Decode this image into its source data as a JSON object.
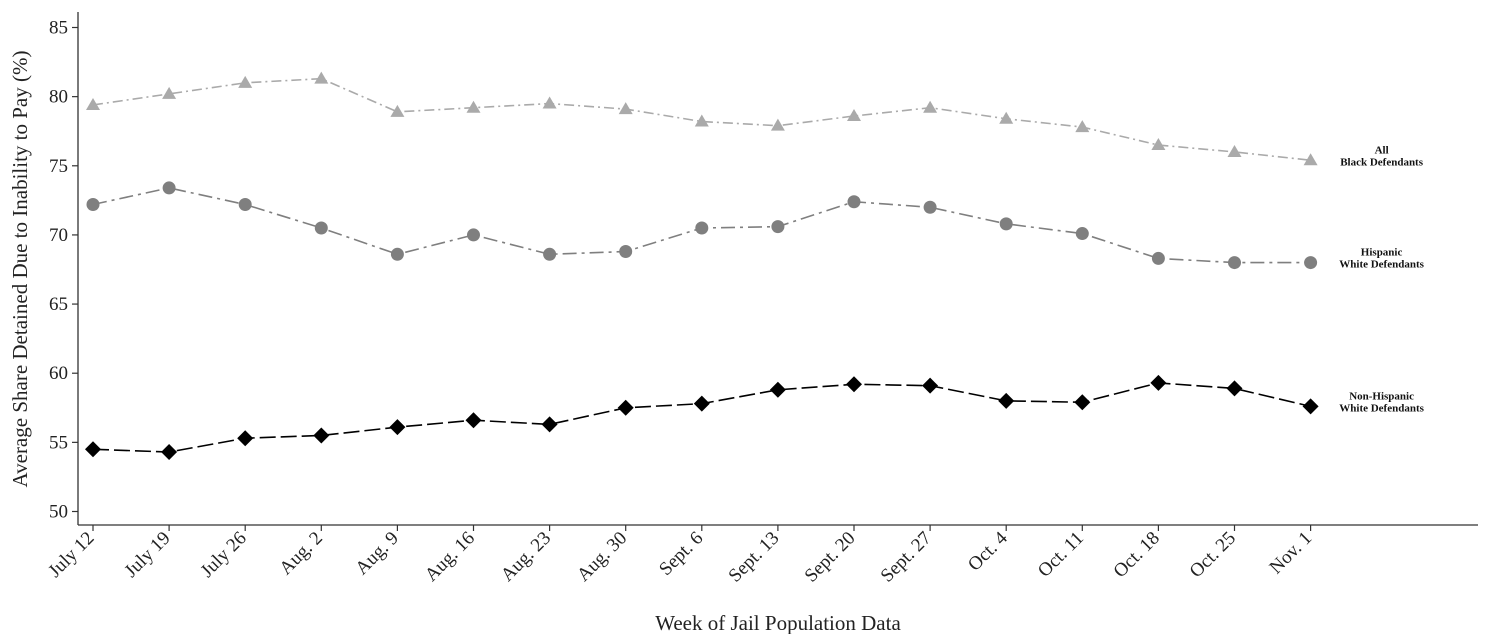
{
  "chart_data": {
    "type": "line",
    "title": "",
    "xlabel": "Week of Jail Population Data",
    "ylabel": "Average Share Detained Due to Inability to Pay (%)",
    "ylim": [
      50,
      85
    ],
    "yticks": [
      50,
      55,
      60,
      65,
      70,
      75,
      80,
      85
    ],
    "grid": false,
    "legend": "direct labels at right end of each line",
    "categories": [
      "July 12",
      "July 19",
      "July 26",
      "Aug. 2",
      "Aug. 9",
      "Aug. 16",
      "Aug. 23",
      "Aug. 30",
      "Sept. 6",
      "Sept. 13",
      "Sept. 20",
      "Sept. 27",
      "Oct. 4",
      "Oct. 11",
      "Oct. 18",
      "Oct. 25",
      "Nov. 1"
    ],
    "series": [
      {
        "name": "All Black Defendants",
        "label_lines": [
          "All",
          "Black Defendants"
        ],
        "color": "#aaaaaa",
        "marker": "triangle",
        "dash": "10,4,2,4",
        "values": [
          79.4,
          80.2,
          81.0,
          81.3,
          78.9,
          79.2,
          79.5,
          79.1,
          78.2,
          77.9,
          78.6,
          79.2,
          78.4,
          77.8,
          76.5,
          76.0,
          75.4
        ]
      },
      {
        "name": "Hispanic White Defendants",
        "label_lines": [
          "Hispanic",
          "White Defendants"
        ],
        "color": "#7f7f7f",
        "marker": "circle",
        "dash": "14,5,3,5",
        "values": [
          72.2,
          73.4,
          72.2,
          70.5,
          68.6,
          70.0,
          68.6,
          68.8,
          70.5,
          70.6,
          72.4,
          72.0,
          70.8,
          70.1,
          68.3,
          68.0,
          68.0
        ]
      },
      {
        "name": "Non-Hispanic White Defendants",
        "label_lines": [
          "Non-Hispanic",
          "White Defendants"
        ],
        "color": "#000000",
        "marker": "diamond",
        "dash": "16,5",
        "values": [
          54.5,
          54.3,
          55.3,
          55.5,
          56.1,
          56.6,
          56.3,
          57.5,
          57.8,
          58.8,
          59.2,
          59.1,
          58.0,
          57.9,
          59.3,
          58.9,
          57.6
        ]
      }
    ]
  }
}
